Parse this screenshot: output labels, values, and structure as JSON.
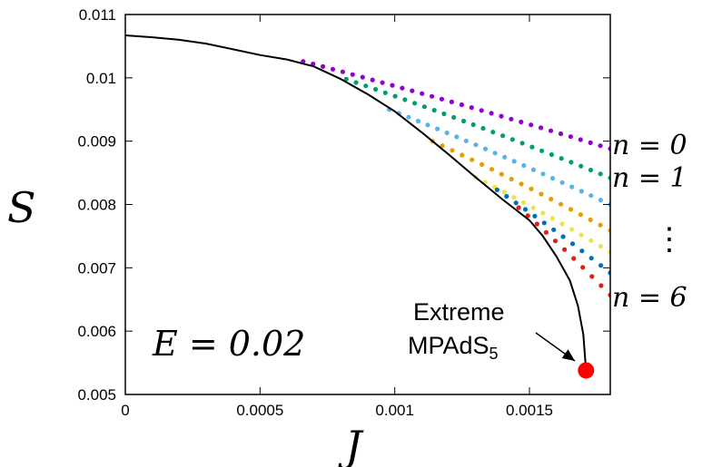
{
  "chart_data": {
    "type": "scatter",
    "xlabel": "J",
    "ylabel": "S",
    "xlim": [
      0,
      0.0018
    ],
    "ylim": [
      0.005,
      0.011
    ],
    "x_ticks": [
      "0",
      "0.0005",
      "0.001",
      "0.0015"
    ],
    "x_tick_values": [
      0,
      0.0005,
      0.001,
      0.0015
    ],
    "y_ticks": [
      "0.005",
      "0.006",
      "0.007",
      "0.008",
      "0.009",
      "0.01",
      "0.011"
    ],
    "y_tick_values": [
      0.005,
      0.006,
      0.007,
      0.008,
      0.009,
      0.01,
      0.011
    ],
    "annotation_energy": "E = 0.02",
    "label_top": "n = 0",
    "label_second": "n = 1",
    "label_dots": "⋮",
    "label_bottom": "n = 6",
    "extreme_label_line1": "Extreme",
    "extreme_label_line2": "MPAdS",
    "extreme_label_sub": "5",
    "extreme_point": {
      "x": 0.00171,
      "y": 0.00538,
      "color": "#ff0000"
    },
    "curve": {
      "color": "#000000",
      "points": [
        [
          0,
          0.01067
        ],
        [
          0.0001,
          0.01064
        ],
        [
          0.0002,
          0.0106
        ],
        [
          0.0003,
          0.01054
        ],
        [
          0.0004,
          0.01045
        ],
        [
          0.0005,
          0.01036
        ],
        [
          0.0006,
          0.01029
        ],
        [
          0.0007,
          0.01018
        ],
        [
          0.0008,
          0.00998
        ],
        [
          0.0009,
          0.00974
        ],
        [
          0.001,
          0.00947
        ],
        [
          0.0011,
          0.00914
        ],
        [
          0.0012,
          0.00879
        ],
        [
          0.0013,
          0.00843
        ],
        [
          0.0014,
          0.00808
        ],
        [
          0.0015,
          0.00775
        ],
        [
          0.00155,
          0.0075
        ],
        [
          0.0016,
          0.00718
        ],
        [
          0.00165,
          0.0068
        ],
        [
          0.00168,
          0.0064
        ],
        [
          0.0017,
          0.00595
        ],
        [
          0.00171,
          0.00538
        ]
      ]
    },
    "series": [
      {
        "color": "#9400d3",
        "x_start": 0.00066,
        "y_start": 0.01026,
        "x_end": 0.0018,
        "y_end": 0.00888,
        "count": 32
      },
      {
        "color": "#009e73",
        "x_start": 0.00082,
        "y_start": 0.00998,
        "x_end": 0.0018,
        "y_end": 0.00842,
        "count": 28
      },
      {
        "color": "#56b4e9",
        "x_start": 0.00098,
        "y_start": 0.0095,
        "x_end": 0.0018,
        "y_end": 0.008,
        "count": 24
      },
      {
        "color": "#e69f00",
        "x_start": 0.00114,
        "y_start": 0.009,
        "x_end": 0.0018,
        "y_end": 0.00759,
        "count": 19
      },
      {
        "color": "#f0e442",
        "x_start": 0.0013,
        "y_start": 0.00843,
        "x_end": 0.0018,
        "y_end": 0.00725,
        "count": 15
      },
      {
        "color": "#0072b2",
        "x_start": 0.00138,
        "y_start": 0.00823,
        "x_end": 0.0018,
        "y_end": 0.00692,
        "count": 13
      },
      {
        "color": "#e51e10",
        "x_start": 0.00146,
        "y_start": 0.00795,
        "x_end": 0.0018,
        "y_end": 0.00657,
        "count": 11
      }
    ]
  }
}
